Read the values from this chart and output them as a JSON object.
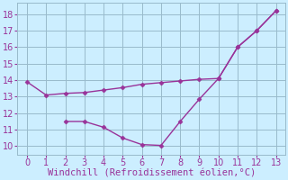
{
  "line1_x": [
    0,
    1,
    2,
    3,
    4,
    5,
    6,
    7,
    8,
    9,
    10,
    11,
    12,
    13
  ],
  "line1_y": [
    13.9,
    13.1,
    13.2,
    13.25,
    13.4,
    13.55,
    13.75,
    13.85,
    13.95,
    14.05,
    14.1,
    16.0,
    17.0,
    18.2
  ],
  "line2_x": [
    2,
    3,
    4,
    5,
    6,
    7,
    8,
    9,
    10,
    11,
    12,
    13
  ],
  "line2_y": [
    11.5,
    11.5,
    11.15,
    10.5,
    10.1,
    10.05,
    11.5,
    12.85,
    14.1,
    16.0,
    17.0,
    18.2
  ],
  "line_color": "#993399",
  "bg_color": "#cceeff",
  "grid_color": "#99bbcc",
  "xlabel": "Windchill (Refroidissement éolien,°C)",
  "xlim": [
    -0.5,
    13.5
  ],
  "ylim": [
    9.5,
    18.7
  ],
  "xticks": [
    0,
    1,
    2,
    3,
    4,
    5,
    6,
    7,
    8,
    9,
    10,
    11,
    12,
    13
  ],
  "yticks": [
    10,
    11,
    12,
    13,
    14,
    15,
    16,
    17,
    18
  ],
  "xlabel_fontsize": 7.5,
  "tick_fontsize": 7,
  "marker": "D",
  "markersize": 2.5,
  "linewidth": 1.0
}
